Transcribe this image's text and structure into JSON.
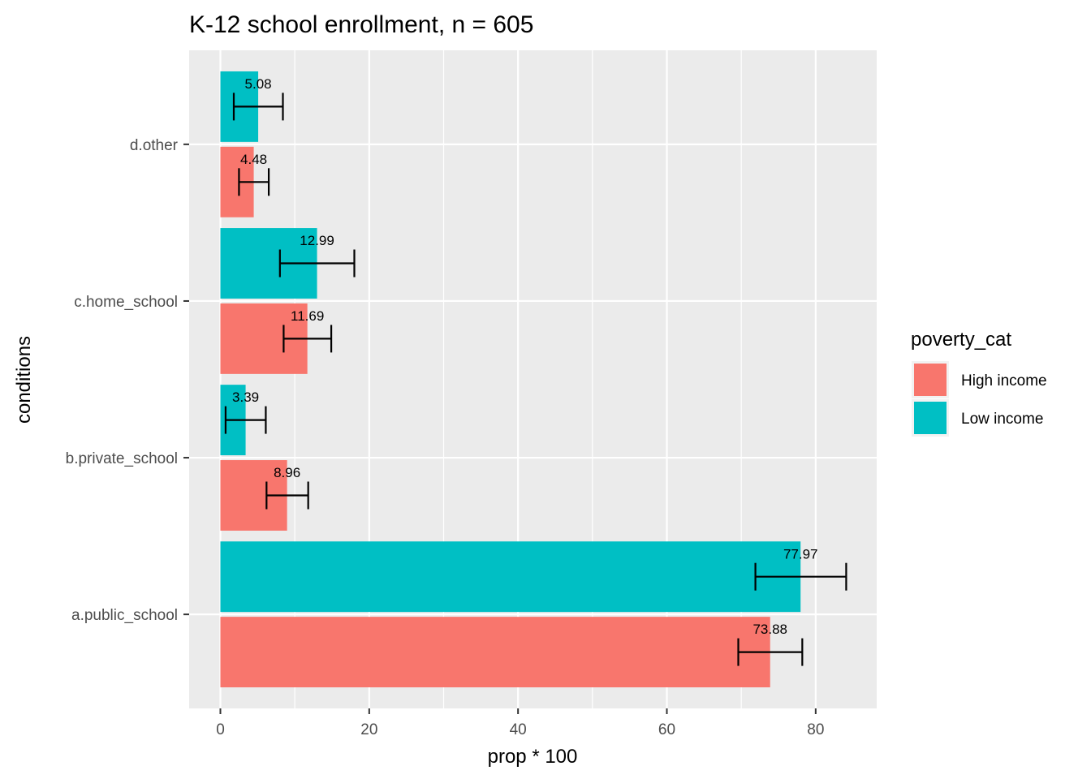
{
  "chart_data": {
    "type": "bar",
    "orientation": "horizontal",
    "title": "K-12 school enrollment, n = 605",
    "xlabel": "prop * 100",
    "ylabel": "conditions",
    "categories": [
      "a.public_school",
      "b.private_school",
      "c.home_school",
      "d.other"
    ],
    "xlim": [
      -4.2,
      88.2
    ],
    "xticks": [
      0,
      20,
      40,
      60,
      80
    ],
    "grid": true,
    "legend": {
      "title": "poverty_cat",
      "position": "right",
      "entries": [
        "High income",
        "Low income"
      ]
    },
    "series": [
      {
        "name": "High income",
        "color": "#F8766D",
        "values": [
          73.88,
          8.96,
          11.69,
          4.48
        ],
        "labels": [
          "73.88",
          "8.96",
          "11.69",
          "4.48"
        ],
        "error_low": [
          69.6,
          6.2,
          8.5,
          2.5
        ],
        "error_high": [
          78.2,
          11.8,
          14.9,
          6.5
        ]
      },
      {
        "name": "Low income",
        "color": "#00BFC4",
        "values": [
          77.97,
          3.39,
          12.99,
          5.08
        ],
        "labels": [
          "77.97",
          "3.39",
          "12.99",
          "5.08"
        ],
        "error_low": [
          71.9,
          0.7,
          8.0,
          1.8
        ],
        "error_high": [
          84.1,
          6.1,
          18.0,
          8.4
        ]
      }
    ]
  }
}
